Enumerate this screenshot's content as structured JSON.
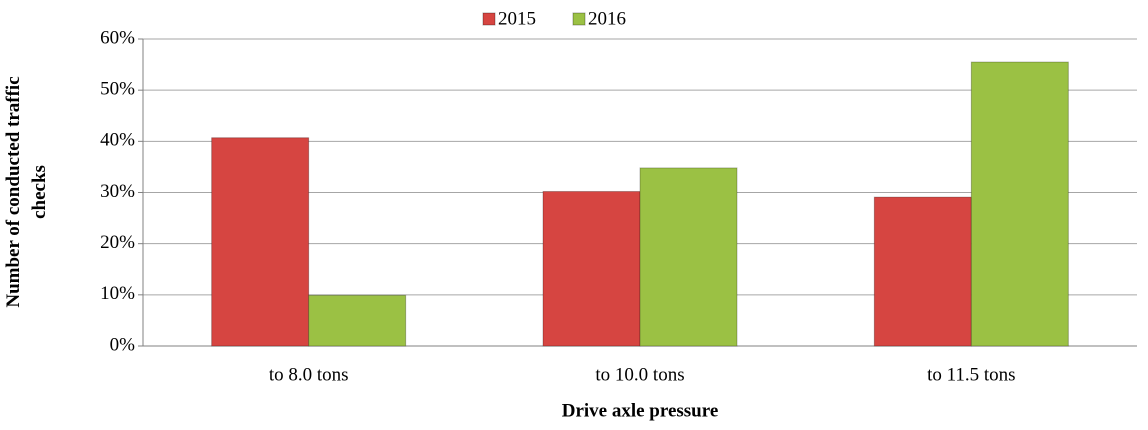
{
  "chart_data": {
    "type": "bar",
    "x_label": "Drive axle pressure",
    "y_label": "Number of conducted traffic checks",
    "categories": [
      "to 8.0 tons",
      "to 10.0 tons",
      "to 11.5 tons"
    ],
    "series": [
      {
        "name": "2015",
        "color": "#d64541",
        "values": [
          40.7,
          30.2,
          29.1
        ]
      },
      {
        "name": "2016",
        "color": "#9bc144",
        "values": [
          9.9,
          34.8,
          55.5
        ]
      }
    ],
    "ylim": [
      0,
      60
    ],
    "yticks": [
      {
        "value": 0,
        "label": "0%"
      },
      {
        "value": 10,
        "label": "10%"
      },
      {
        "value": 20,
        "label": "20%"
      },
      {
        "value": 30,
        "label": "30%"
      },
      {
        "value": 40,
        "label": "40%"
      },
      {
        "value": 50,
        "label": "50%"
      },
      {
        "value": 60,
        "label": "60%"
      }
    ],
    "grid": true
  }
}
